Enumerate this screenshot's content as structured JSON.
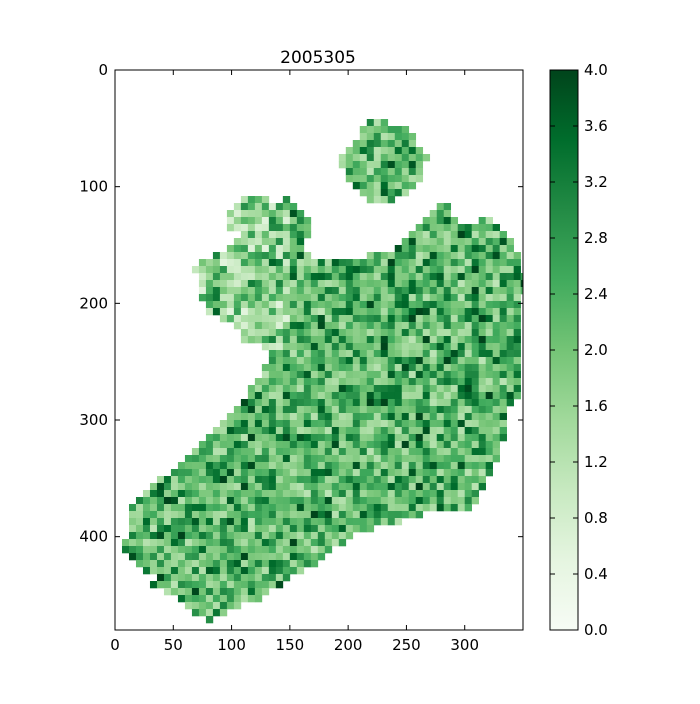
{
  "chart_data": {
    "type": "heatmap",
    "title": "2005305",
    "xlabel": "",
    "ylabel": "",
    "xlim": [
      0,
      350
    ],
    "ylim": [
      480,
      0
    ],
    "x_ticks": [
      0,
      50,
      100,
      150,
      200,
      250,
      300
    ],
    "y_ticks": [
      0,
      100,
      200,
      300,
      400
    ],
    "colormap": "Greens",
    "colormap_stops": [
      "#f7fcf5",
      "#e5f5e0",
      "#c7e9c0",
      "#a1d99b",
      "#74c476",
      "#41ab5d",
      "#238b45",
      "#006d2c",
      "#00441b"
    ],
    "colorbar": {
      "min": 0.0,
      "max": 4.0,
      "tick_labels": [
        "0.0",
        "0.4",
        "0.8",
        "1.2",
        "1.6",
        "2.0",
        "2.4",
        "2.8",
        "3.2",
        "3.6",
        "4.0"
      ]
    },
    "grid": false,
    "legend": "colorbar right",
    "notes": "Raster map of Ireland; land pixels valued 0-4 with mean around 1.8, ocean/no-data shown white"
  }
}
